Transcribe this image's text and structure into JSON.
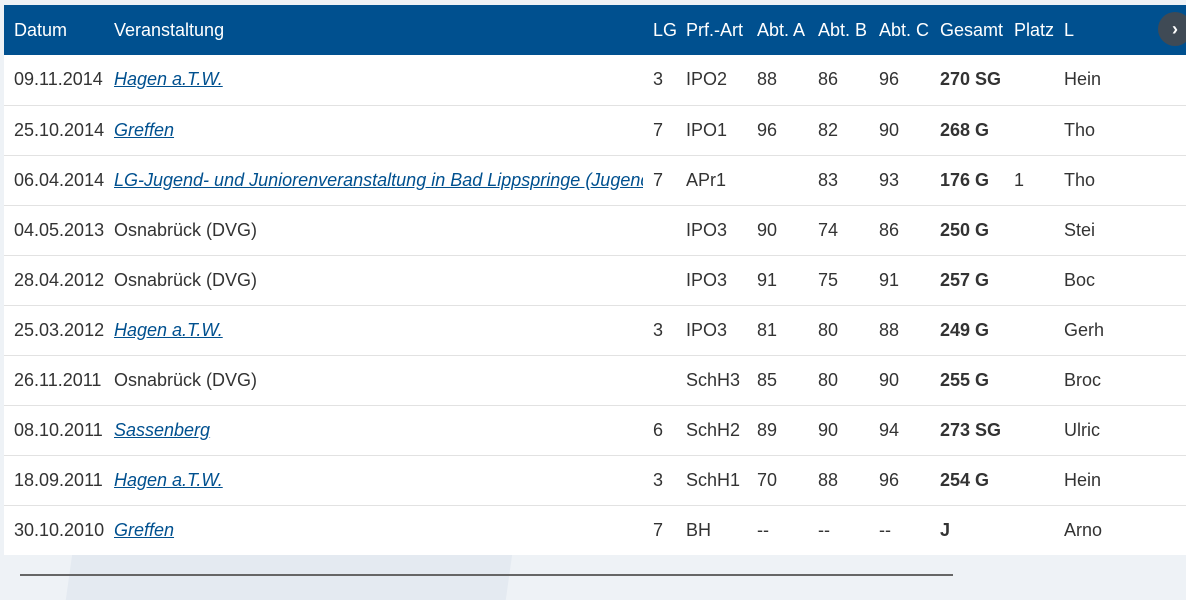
{
  "table": {
    "headers": [
      "Datum",
      "Veranstaltung",
      "LG",
      "Prf.-Art",
      "Abt. A",
      "Abt. B",
      "Abt. C",
      "Gesamt",
      "Platz",
      "L"
    ],
    "rows": [
      {
        "datum": "09.11.2014",
        "event": "Hagen a.T.W.",
        "link": true,
        "lg": "3",
        "art": "IPO2",
        "a": "88",
        "b": "86",
        "c": "96",
        "gesamt": "270 SG",
        "platz": "",
        "rest": "Hein"
      },
      {
        "datum": "25.10.2014",
        "event": "Greffen",
        "link": true,
        "lg": "7",
        "art": "IPO1",
        "a": "96",
        "b": "82",
        "c": "90",
        "gesamt": "268 G",
        "platz": "",
        "rest": "Tho"
      },
      {
        "datum": "06.04.2014",
        "event": "LG-Jugend- und Juniorenveranstaltung in Bad Lippspringe (Jugend)",
        "link": true,
        "lg": "7",
        "art": "APr1",
        "a": "",
        "b": "83",
        "c": "93",
        "gesamt": "176 G",
        "platz": "1",
        "rest": "Tho"
      },
      {
        "datum": "04.05.2013",
        "event": "Osnabrück (DVG)",
        "link": false,
        "lg": "",
        "art": "IPO3",
        "a": "90",
        "b": "74",
        "c": "86",
        "gesamt": "250 G",
        "platz": "",
        "rest": "Stei"
      },
      {
        "datum": "28.04.2012",
        "event": "Osnabrück (DVG)",
        "link": false,
        "lg": "",
        "art": "IPO3",
        "a": "91",
        "b": "75",
        "c": "91",
        "gesamt": "257 G",
        "platz": "",
        "rest": "Boc"
      },
      {
        "datum": "25.03.2012",
        "event": "Hagen a.T.W.",
        "link": true,
        "lg": "3",
        "art": "IPO3",
        "a": "81",
        "b": "80",
        "c": "88",
        "gesamt": "249 G",
        "platz": "",
        "rest": "Gerh"
      },
      {
        "datum": "26.11.2011",
        "event": "Osnabrück (DVG)",
        "link": false,
        "lg": "",
        "art": "SchH3",
        "a": "85",
        "b": "80",
        "c": "90",
        "gesamt": "255 G",
        "platz": "",
        "rest": "Broc"
      },
      {
        "datum": "08.10.2011",
        "event": "Sassenberg",
        "link": true,
        "lg": "6",
        "art": "SchH2",
        "a": "89",
        "b": "90",
        "c": "94",
        "gesamt": "273 SG",
        "platz": "",
        "rest": "Ulric"
      },
      {
        "datum": "18.09.2011",
        "event": "Hagen a.T.W.",
        "link": true,
        "lg": "3",
        "art": "SchH1",
        "a": "70",
        "b": "88",
        "c": "96",
        "gesamt": "254 G",
        "platz": "",
        "rest": "Hein"
      },
      {
        "datum": "30.10.2010",
        "event": "Greffen",
        "link": true,
        "lg": "7",
        "art": "BH",
        "a": "--",
        "b": "--",
        "c": "--",
        "gesamt": "J",
        "platz": "",
        "rest": "Arno"
      }
    ]
  },
  "controls": {
    "scroll_right_icon": "chevron-right-icon",
    "scroll_right_glyph": "›"
  },
  "colors": {
    "header_bg": "#00508f",
    "link": "#00508f"
  }
}
